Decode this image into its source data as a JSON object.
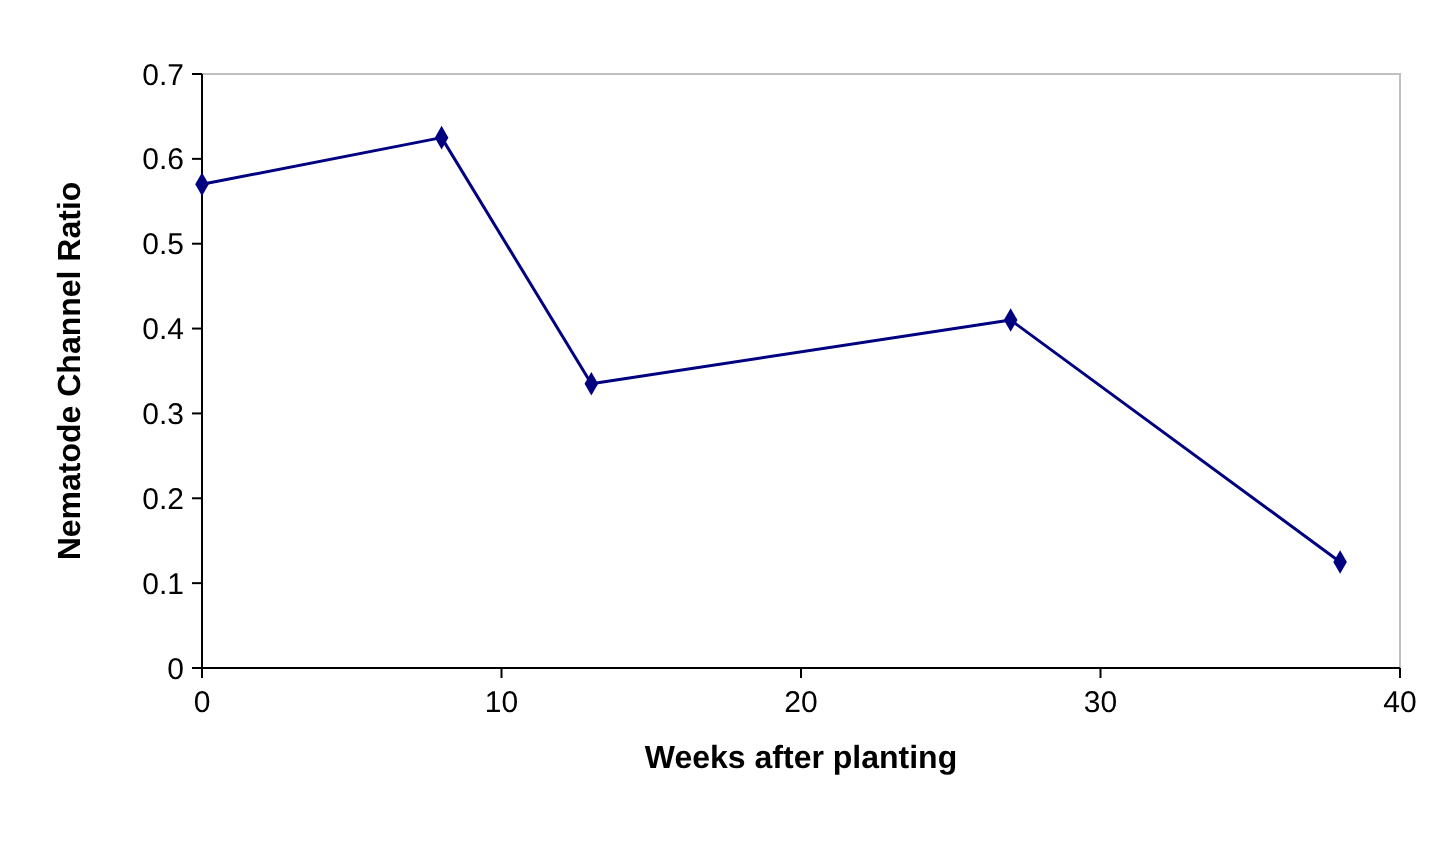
{
  "chart_data": {
    "type": "line",
    "xlabel": "Weeks after planting",
    "ylabel": "Nematode Channel Ratio",
    "x": [
      0,
      8,
      13,
      27,
      38
    ],
    "series": [
      {
        "color": "#000080",
        "values": [
          0.57,
          0.625,
          0.335,
          0.41,
          0.125
        ]
      }
    ],
    "xlim": [
      0,
      40
    ],
    "xticks": [
      0,
      10,
      20,
      30,
      40
    ],
    "ylim": [
      0,
      0.7
    ],
    "yticks": [
      0,
      0.1,
      0.2,
      0.3,
      0.4,
      0.5,
      0.6,
      0.7
    ],
    "marker": "diamond",
    "line_style": "solid",
    "grid": false
  }
}
